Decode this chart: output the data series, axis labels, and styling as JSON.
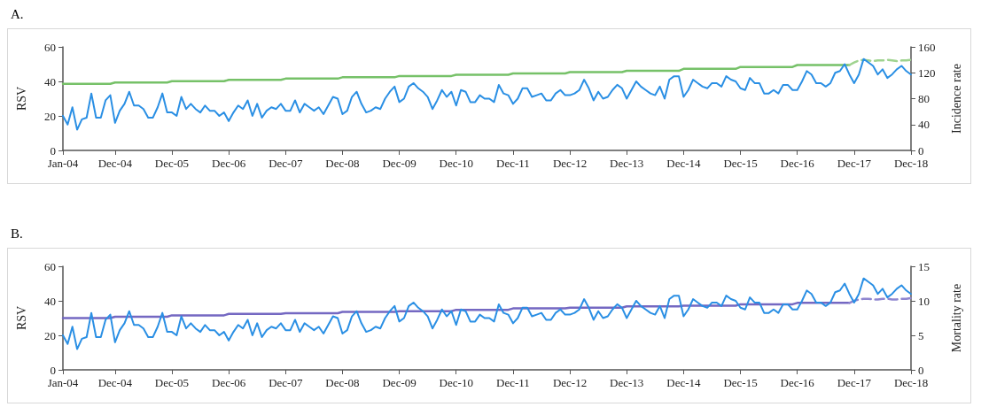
{
  "chart_data": [
    {
      "type": "line",
      "title": "A.",
      "ylabel": "RSV",
      "y2label": "Incidence rate",
      "ylim": [
        0,
        60
      ],
      "yticks": [
        0,
        20,
        40,
        60
      ],
      "y2lim": [
        0,
        160
      ],
      "y2ticks": [
        0,
        40,
        80,
        120,
        160
      ],
      "marker": "none",
      "categories": [
        "Jan-04",
        null,
        null,
        null,
        null,
        null,
        null,
        null,
        null,
        null,
        null,
        "Dec-04",
        null,
        null,
        null,
        null,
        null,
        null,
        null,
        null,
        null,
        null,
        null,
        "Dec-05",
        null,
        null,
        null,
        null,
        null,
        null,
        null,
        null,
        null,
        null,
        null,
        "Dec-06",
        null,
        null,
        null,
        null,
        null,
        null,
        null,
        null,
        null,
        null,
        null,
        "Dec-07",
        null,
        null,
        null,
        null,
        null,
        null,
        null,
        null,
        null,
        null,
        null,
        "Dec-08",
        null,
        null,
        null,
        null,
        null,
        null,
        null,
        null,
        null,
        null,
        null,
        "Dec-09",
        null,
        null,
        null,
        null,
        null,
        null,
        null,
        null,
        null,
        null,
        null,
        "Dec-10",
        null,
        null,
        null,
        null,
        null,
        null,
        null,
        null,
        null,
        null,
        null,
        "Dec-11",
        null,
        null,
        null,
        null,
        null,
        null,
        null,
        null,
        null,
        null,
        null,
        "Dec-12",
        null,
        null,
        null,
        null,
        null,
        null,
        null,
        null,
        null,
        null,
        null,
        "Dec-13",
        null,
        null,
        null,
        null,
        null,
        null,
        null,
        null,
        null,
        null,
        null,
        "Dec-14",
        null,
        null,
        null,
        null,
        null,
        null,
        null,
        null,
        null,
        null,
        null,
        "Dec-15",
        null,
        null,
        null,
        null,
        null,
        null,
        null,
        null,
        null,
        null,
        null,
        "Dec-16",
        null,
        null,
        null,
        null,
        null,
        null,
        null,
        null,
        null,
        null,
        null,
        "Dec-17",
        null,
        null,
        null,
        null,
        null,
        null,
        null,
        null,
        null,
        null,
        null,
        "Dec-18"
      ],
      "series": [
        {
          "color": "#2a8fe4",
          "values": [
            20,
            15,
            25,
            12,
            18,
            19,
            33,
            19,
            19,
            29,
            32,
            16,
            23,
            27,
            34,
            26,
            26,
            24,
            19,
            19,
            25,
            33,
            22,
            22,
            20,
            31,
            24,
            27,
            24,
            22,
            26,
            23,
            23,
            20,
            22,
            17,
            22,
            26,
            24,
            29,
            20,
            27,
            19,
            23,
            25,
            24,
            27,
            23,
            23,
            29,
            22,
            27,
            25,
            23,
            25,
            21,
            26,
            31,
            30,
            21,
            23,
            31,
            34,
            27,
            22,
            23,
            25,
            24,
            30,
            34,
            37,
            28,
            30,
            37,
            39,
            36,
            34,
            31,
            24,
            29,
            35,
            31,
            34,
            26,
            35,
            34,
            28,
            28,
            32,
            30,
            30,
            28,
            38,
            33,
            32,
            27,
            30,
            36,
            36,
            31,
            32,
            33,
            29,
            29,
            33,
            35,
            32,
            32,
            33,
            35,
            41,
            36,
            29,
            34,
            30,
            31,
            35,
            38,
            36,
            30,
            35,
            40,
            37,
            35,
            33,
            32,
            37,
            30,
            41,
            43,
            43,
            31,
            35,
            41,
            39,
            37,
            36,
            39,
            39,
            37,
            43,
            41,
            40,
            36,
            35,
            42,
            39,
            39,
            33,
            33,
            35,
            33,
            38,
            38,
            35,
            35,
            40,
            46,
            44,
            39,
            39,
            37,
            39,
            45,
            46,
            50,
            44,
            39,
            44,
            53,
            51,
            49,
            44,
            47,
            42,
            44,
            47,
            49,
            46,
            44
          ]
        },
        {
          "color": "#76c168",
          "axis": "y2",
          "values": [
            103,
            103,
            103,
            103,
            103,
            103,
            103,
            103,
            103,
            103,
            103,
            105,
            105,
            105,
            105,
            105,
            105,
            105,
            105,
            105,
            105,
            105,
            105,
            107,
            107,
            107,
            107,
            107,
            107,
            107,
            107,
            107,
            107,
            107,
            107,
            109,
            109,
            109,
            109,
            109,
            109,
            109,
            109,
            109,
            109,
            109,
            109,
            111,
            111,
            111,
            111,
            111,
            111,
            111,
            111,
            111,
            111,
            111,
            111,
            113,
            113,
            113,
            113,
            113,
            113,
            113,
            113,
            113,
            113,
            113,
            113,
            115,
            115,
            115,
            115,
            115,
            115,
            115,
            115,
            115,
            115,
            115,
            115,
            117,
            117,
            117,
            117,
            117,
            117,
            117,
            117,
            117,
            117,
            117,
            117,
            119,
            119,
            119,
            119,
            119,
            119,
            119,
            119,
            119,
            119,
            119,
            119,
            121,
            121,
            121,
            121,
            121,
            121,
            121,
            121,
            121,
            121,
            121,
            121,
            123,
            123,
            123,
            123,
            123,
            123,
            123,
            123,
            123,
            123,
            123,
            123,
            126,
            126,
            126,
            126,
            126,
            126,
            126,
            126,
            126,
            126,
            126,
            126,
            129,
            129,
            129,
            129,
            129,
            129,
            129,
            129,
            129,
            129,
            129,
            129,
            132,
            132,
            132,
            132,
            132,
            132,
            132,
            132,
            132,
            132,
            132,
            132,
            null,
            null,
            null,
            null,
            null,
            null,
            null,
            null,
            null,
            null,
            null,
            null,
            null
          ]
        },
        {
          "color": "#9fd38f",
          "axis": "y2",
          "line_style": "dashed",
          "values": [
            null,
            null,
            null,
            null,
            null,
            null,
            null,
            null,
            null,
            null,
            null,
            null,
            null,
            null,
            null,
            null,
            null,
            null,
            null,
            null,
            null,
            null,
            null,
            null,
            null,
            null,
            null,
            null,
            null,
            null,
            null,
            null,
            null,
            null,
            null,
            null,
            null,
            null,
            null,
            null,
            null,
            null,
            null,
            null,
            null,
            null,
            null,
            null,
            null,
            null,
            null,
            null,
            null,
            null,
            null,
            null,
            null,
            null,
            null,
            null,
            null,
            null,
            null,
            null,
            null,
            null,
            null,
            null,
            null,
            null,
            null,
            null,
            null,
            null,
            null,
            null,
            null,
            null,
            null,
            null,
            null,
            null,
            null,
            null,
            null,
            null,
            null,
            null,
            null,
            null,
            null,
            null,
            null,
            null,
            null,
            null,
            null,
            null,
            null,
            null,
            null,
            null,
            null,
            null,
            null,
            null,
            null,
            null,
            null,
            null,
            null,
            null,
            null,
            null,
            null,
            null,
            null,
            null,
            null,
            null,
            null,
            null,
            null,
            null,
            null,
            null,
            null,
            null,
            null,
            null,
            null,
            null,
            null,
            null,
            null,
            null,
            null,
            null,
            null,
            null,
            null,
            null,
            null,
            null,
            null,
            null,
            null,
            null,
            null,
            null,
            null,
            null,
            null,
            null,
            null,
            null,
            null,
            null,
            null,
            null,
            null,
            null,
            null,
            null,
            null,
            null,
            132,
            136,
            139,
            140,
            139,
            138,
            139,
            139,
            140,
            139,
            138,
            139,
            139,
            140
          ]
        }
      ]
    },
    {
      "type": "line",
      "title": "B.",
      "ylabel": "RSV",
      "y2label": "Mortality rate",
      "ylim": [
        0,
        60
      ],
      "yticks": [
        0,
        20,
        40,
        60
      ],
      "y2lim": [
        0,
        15
      ],
      "y2ticks": [
        0,
        5,
        10,
        15
      ],
      "marker": "none",
      "categories": [
        "Jan-04",
        null,
        null,
        null,
        null,
        null,
        null,
        null,
        null,
        null,
        null,
        "Dec-04",
        null,
        null,
        null,
        null,
        null,
        null,
        null,
        null,
        null,
        null,
        null,
        "Dec-05",
        null,
        null,
        null,
        null,
        null,
        null,
        null,
        null,
        null,
        null,
        null,
        "Dec-06",
        null,
        null,
        null,
        null,
        null,
        null,
        null,
        null,
        null,
        null,
        null,
        "Dec-07",
        null,
        null,
        null,
        null,
        null,
        null,
        null,
        null,
        null,
        null,
        null,
        "Dec-08",
        null,
        null,
        null,
        null,
        null,
        null,
        null,
        null,
        null,
        null,
        null,
        "Dec-09",
        null,
        null,
        null,
        null,
        null,
        null,
        null,
        null,
        null,
        null,
        null,
        "Dec-10",
        null,
        null,
        null,
        null,
        null,
        null,
        null,
        null,
        null,
        null,
        null,
        "Dec-11",
        null,
        null,
        null,
        null,
        null,
        null,
        null,
        null,
        null,
        null,
        null,
        "Dec-12",
        null,
        null,
        null,
        null,
        null,
        null,
        null,
        null,
        null,
        null,
        null,
        "Dec-13",
        null,
        null,
        null,
        null,
        null,
        null,
        null,
        null,
        null,
        null,
        null,
        "Dec-14",
        null,
        null,
        null,
        null,
        null,
        null,
        null,
        null,
        null,
        null,
        null,
        "Dec-15",
        null,
        null,
        null,
        null,
        null,
        null,
        null,
        null,
        null,
        null,
        null,
        "Dec-16",
        null,
        null,
        null,
        null,
        null,
        null,
        null,
        null,
        null,
        null,
        null,
        "Dec-17",
        null,
        null,
        null,
        null,
        null,
        null,
        null,
        null,
        null,
        null,
        null,
        "Dec-18"
      ],
      "series": [
        {
          "color": "#2a8fe4",
          "values": [
            20,
            15,
            25,
            12,
            18,
            19,
            33,
            19,
            19,
            29,
            32,
            16,
            23,
            27,
            34,
            26,
            26,
            24,
            19,
            19,
            25,
            33,
            22,
            22,
            20,
            31,
            24,
            27,
            24,
            22,
            26,
            23,
            23,
            20,
            22,
            17,
            22,
            26,
            24,
            29,
            20,
            27,
            19,
            23,
            25,
            24,
            27,
            23,
            23,
            29,
            22,
            27,
            25,
            23,
            25,
            21,
            26,
            31,
            30,
            21,
            23,
            31,
            34,
            27,
            22,
            23,
            25,
            24,
            30,
            34,
            37,
            28,
            30,
            37,
            39,
            36,
            34,
            31,
            24,
            29,
            35,
            31,
            34,
            26,
            35,
            34,
            28,
            28,
            32,
            30,
            30,
            28,
            38,
            33,
            32,
            27,
            30,
            36,
            36,
            31,
            32,
            33,
            29,
            29,
            33,
            35,
            32,
            32,
            33,
            35,
            41,
            36,
            29,
            34,
            30,
            31,
            35,
            38,
            36,
            30,
            35,
            40,
            37,
            35,
            33,
            32,
            37,
            30,
            41,
            43,
            43,
            31,
            35,
            41,
            39,
            37,
            36,
            39,
            39,
            37,
            43,
            41,
            40,
            36,
            35,
            42,
            39,
            39,
            33,
            33,
            35,
            33,
            38,
            38,
            35,
            35,
            40,
            46,
            44,
            39,
            39,
            37,
            39,
            45,
            46,
            50,
            44,
            39,
            44,
            53,
            51,
            49,
            44,
            47,
            42,
            44,
            47,
            49,
            46,
            44
          ]
        },
        {
          "color": "#7468c2",
          "axis": "y2",
          "values": [
            7.5,
            7.5,
            7.5,
            7.5,
            7.5,
            7.5,
            7.5,
            7.5,
            7.5,
            7.5,
            7.5,
            7.7,
            7.7,
            7.7,
            7.7,
            7.7,
            7.7,
            7.7,
            7.7,
            7.7,
            7.7,
            7.7,
            7.7,
            7.9,
            7.9,
            7.9,
            7.9,
            7.9,
            7.9,
            7.9,
            7.9,
            7.9,
            7.9,
            7.9,
            7.9,
            8.1,
            8.1,
            8.1,
            8.1,
            8.1,
            8.1,
            8.1,
            8.1,
            8.1,
            8.1,
            8.1,
            8.1,
            8.2,
            8.2,
            8.2,
            8.2,
            8.2,
            8.2,
            8.2,
            8.2,
            8.2,
            8.2,
            8.2,
            8.2,
            8.4,
            8.4,
            8.4,
            8.4,
            8.4,
            8.4,
            8.4,
            8.4,
            8.4,
            8.4,
            8.4,
            8.4,
            8.5,
            8.5,
            8.5,
            8.5,
            8.5,
            8.5,
            8.5,
            8.5,
            8.5,
            8.5,
            8.5,
            8.5,
            8.7,
            8.7,
            8.7,
            8.7,
            8.7,
            8.7,
            8.7,
            8.7,
            8.7,
            8.7,
            8.7,
            8.7,
            8.9,
            8.9,
            8.9,
            8.9,
            8.9,
            8.9,
            8.9,
            8.9,
            8.9,
            8.9,
            8.9,
            8.9,
            9.0,
            9.0,
            9.0,
            9.0,
            9.0,
            9.0,
            9.0,
            9.0,
            9.0,
            9.0,
            9.0,
            9.0,
            9.2,
            9.2,
            9.2,
            9.2,
            9.2,
            9.2,
            9.2,
            9.2,
            9.2,
            9.2,
            9.2,
            9.2,
            9.3,
            9.3,
            9.3,
            9.3,
            9.3,
            9.3,
            9.3,
            9.3,
            9.3,
            9.3,
            9.3,
            9.3,
            9.5,
            9.5,
            9.5,
            9.5,
            9.5,
            9.5,
            9.5,
            9.5,
            9.5,
            9.5,
            9.5,
            9.5,
            9.7,
            9.7,
            9.7,
            9.7,
            9.7,
            9.7,
            9.7,
            9.7,
            9.7,
            9.7,
            9.7,
            9.7,
            null,
            null,
            null,
            null,
            null,
            null,
            null,
            null,
            null,
            null,
            null,
            null,
            null
          ]
        },
        {
          "color": "#8f86d0",
          "axis": "y2",
          "line_style": "dashed",
          "values": [
            null,
            null,
            null,
            null,
            null,
            null,
            null,
            null,
            null,
            null,
            null,
            null,
            null,
            null,
            null,
            null,
            null,
            null,
            null,
            null,
            null,
            null,
            null,
            null,
            null,
            null,
            null,
            null,
            null,
            null,
            null,
            null,
            null,
            null,
            null,
            null,
            null,
            null,
            null,
            null,
            null,
            null,
            null,
            null,
            null,
            null,
            null,
            null,
            null,
            null,
            null,
            null,
            null,
            null,
            null,
            null,
            null,
            null,
            null,
            null,
            null,
            null,
            null,
            null,
            null,
            null,
            null,
            null,
            null,
            null,
            null,
            null,
            null,
            null,
            null,
            null,
            null,
            null,
            null,
            null,
            null,
            null,
            null,
            null,
            null,
            null,
            null,
            null,
            null,
            null,
            null,
            null,
            null,
            null,
            null,
            null,
            null,
            null,
            null,
            null,
            null,
            null,
            null,
            null,
            null,
            null,
            null,
            null,
            null,
            null,
            null,
            null,
            null,
            null,
            null,
            null,
            null,
            null,
            null,
            null,
            null,
            null,
            null,
            null,
            null,
            null,
            null,
            null,
            null,
            null,
            null,
            null,
            null,
            null,
            null,
            null,
            null,
            null,
            null,
            null,
            null,
            null,
            null,
            null,
            null,
            null,
            null,
            null,
            null,
            null,
            null,
            null,
            null,
            null,
            null,
            null,
            null,
            null,
            null,
            null,
            null,
            null,
            null,
            null,
            null,
            null,
            9.7,
            10.0,
            10.2,
            10.3,
            10.3,
            10.2,
            10.2,
            10.3,
            10.3,
            10.2,
            10.2,
            10.3,
            10.3,
            10.4
          ]
        }
      ]
    }
  ]
}
